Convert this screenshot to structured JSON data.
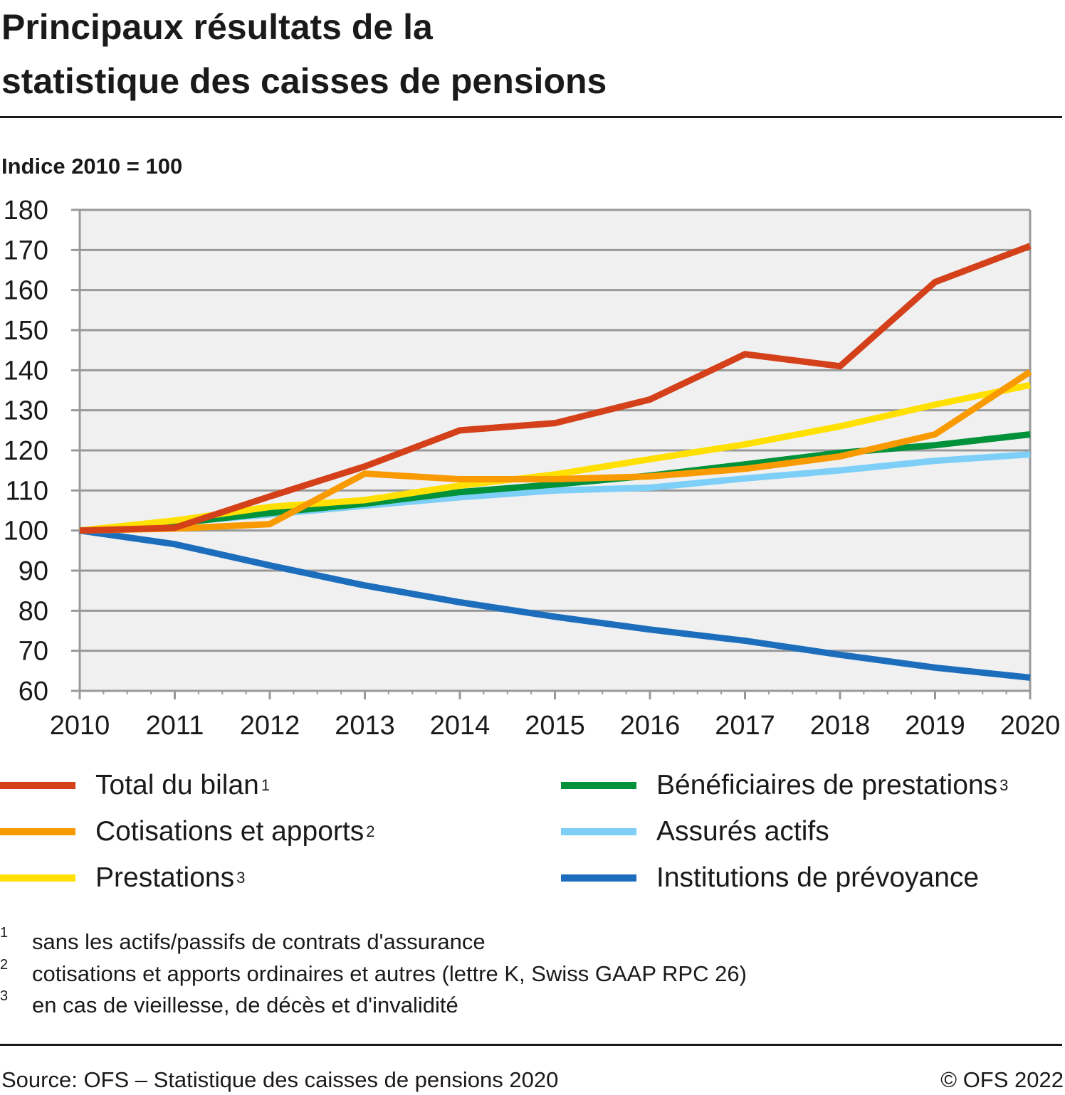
{
  "title": [
    "Principaux résultats de la",
    "statistique des caisses de pensions"
  ],
  "footnotes": [
    {
      "mark": "1",
      "text": "sans les actifs/passifs de contrats d'assurance"
    },
    {
      "mark": "2",
      "text": "cotisations et apports ordinaires et autres (lettre K, Swiss GAAP RPC 26)"
    },
    {
      "mark": "3",
      "text": "en cas de vieillesse, de décès et d'invalidité"
    }
  ],
  "source": "Source: OFS – Statistique des caisses de pensions 2020",
  "copyright": "© OFS 2022",
  "chart_data": {
    "type": "line",
    "ylabel": "Indice 2010 = 100",
    "ylim": [
      60,
      180
    ],
    "yticks": [
      60,
      70,
      80,
      90,
      100,
      110,
      120,
      130,
      140,
      150,
      160,
      170,
      180
    ],
    "x": [
      2010,
      2011,
      2012,
      2013,
      2014,
      2015,
      2016,
      2017,
      2018,
      2019,
      2020
    ],
    "grid": true,
    "legend": "bottom",
    "series": [
      {
        "name": "Total du bilan",
        "sup": "1",
        "color": "#d4401a",
        "values": [
          100,
          100.7,
          108.5,
          116,
          125,
          126.8,
          132.7,
          144,
          141,
          162,
          171
        ]
      },
      {
        "name": "Cotisations et apports",
        "sup": "2",
        "color": "#f99b00",
        "values": [
          100,
          100.5,
          101.6,
          114.2,
          112.8,
          112.8,
          113.5,
          115.4,
          118.5,
          124,
          139.6
        ]
      },
      {
        "name": "Prestations",
        "sup": "3",
        "color": "#ffe000",
        "values": [
          100,
          102.5,
          105.9,
          107.6,
          111.2,
          114,
          117.8,
          121.5,
          126,
          131.4,
          136.3
        ]
      },
      {
        "name": "Bénéficiaires de prestations",
        "sup": "3",
        "color": "#00923a",
        "values": [
          100,
          101.8,
          104.4,
          106.7,
          109.6,
          111.5,
          113.7,
          116.5,
          119.4,
          121.3,
          124
        ]
      },
      {
        "name": "Assurés actifs",
        "sup": "",
        "color": "#7dcff8",
        "values": [
          100,
          102,
          104,
          106.2,
          108.3,
          110,
          110.7,
          113,
          115,
          117.4,
          119
        ]
      },
      {
        "name": "Institutions de prévoyance",
        "sup": "",
        "color": "#1c6ebd",
        "values": [
          100,
          96.6,
          91.3,
          86.3,
          82.1,
          78.5,
          75.3,
          72.5,
          69,
          65.8,
          63.3
        ]
      }
    ]
  }
}
